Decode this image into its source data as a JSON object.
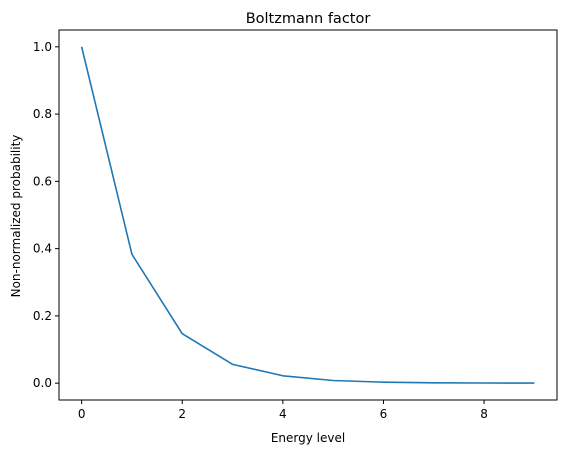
{
  "chart_data": {
    "type": "line",
    "title": "Boltzmann factor",
    "xlabel": "Energy level",
    "ylabel": "Non-normalized probability",
    "xlim": [
      -0.45,
      9.45
    ],
    "ylim": [
      -0.05,
      1.05
    ],
    "xticks": [
      0,
      2,
      4,
      6,
      8
    ],
    "xtick_labels": [
      "0",
      "2",
      "4",
      "6",
      "8"
    ],
    "yticks": [
      0.0,
      0.2,
      0.4,
      0.6,
      0.8,
      1.0
    ],
    "ytick_labels": [
      "0.0",
      "0.2",
      "0.4",
      "0.6",
      "0.8",
      "1.0"
    ],
    "grid": false,
    "series": [
      {
        "color": "#1f77b4",
        "x": [
          0,
          1,
          2,
          3,
          4,
          5,
          6,
          7,
          8,
          9
        ],
        "y": [
          1.0,
          0.383,
          0.147,
          0.056,
          0.022,
          0.008,
          0.003,
          0.001,
          0.0005,
          0.0002
        ]
      }
    ]
  }
}
